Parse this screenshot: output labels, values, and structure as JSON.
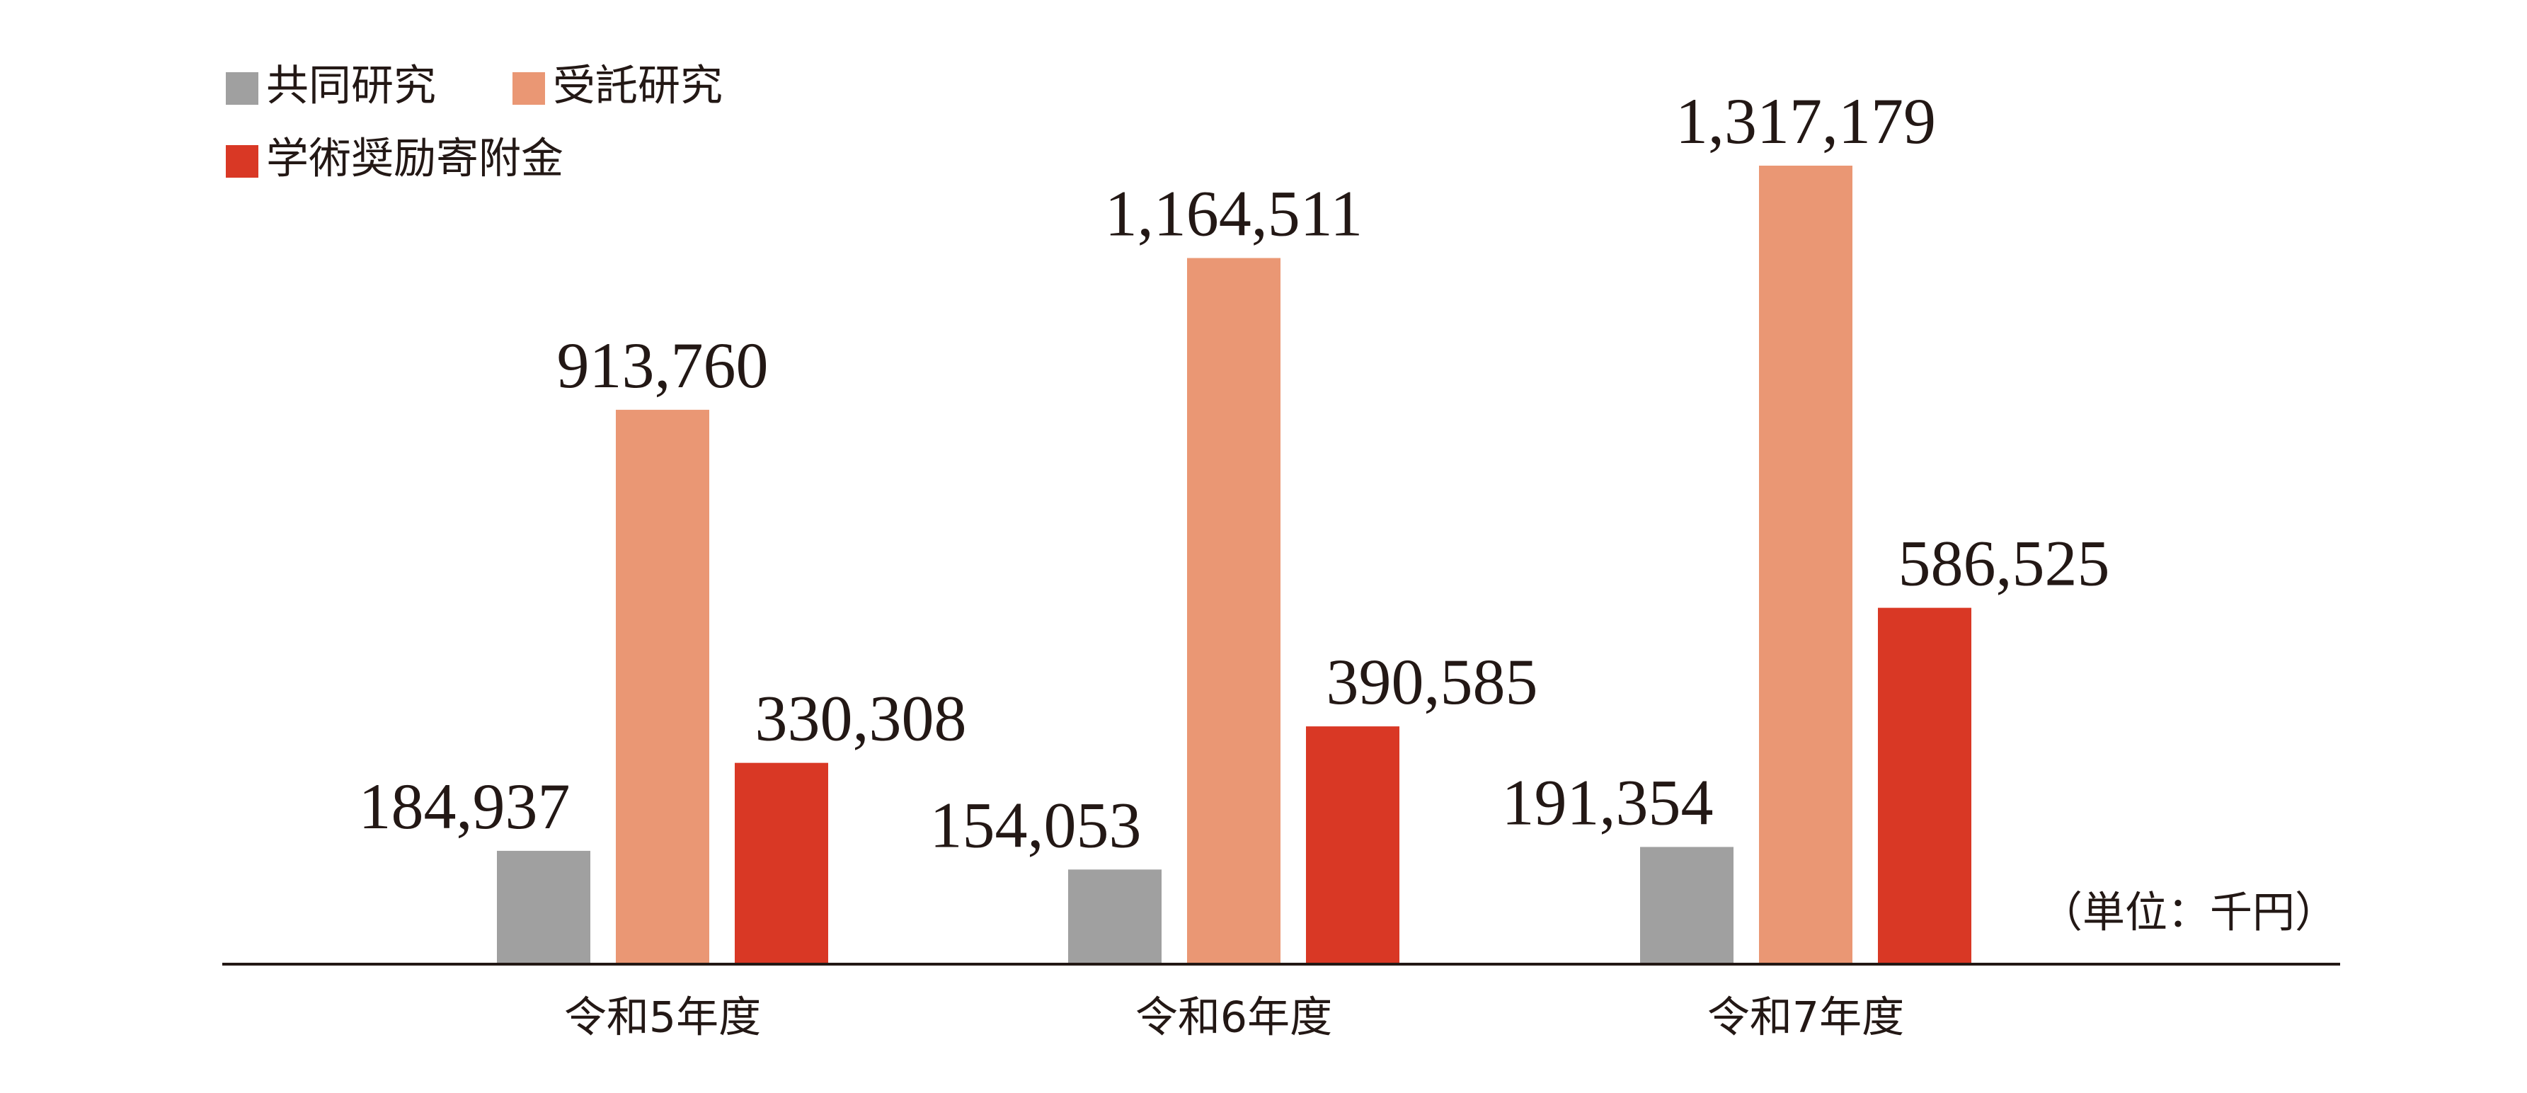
{
  "chart_data": {
    "type": "bar",
    "categories": [
      "令和5年度",
      "令和6年度",
      "令和7年度"
    ],
    "series": [
      {
        "name": "共同研究",
        "color": "#a0a0a0",
        "values": [
          184937,
          154053,
          191354
        ],
        "value_labels": [
          "184,937",
          "154,053",
          "191,354"
        ]
      },
      {
        "name": "受託研究",
        "color": "#ea9774",
        "values": [
          913760,
          1164511,
          1317179
        ],
        "value_labels": [
          "913,760",
          "1,164,511",
          "1,317,179"
        ]
      },
      {
        "name": "学術奨励寄附金",
        "color": "#d93825",
        "values": [
          330308,
          390585,
          586525
        ],
        "value_labels": [
          "330,308",
          "390,585",
          "586,525"
        ]
      }
    ],
    "unit_note": "（単位：千円）"
  }
}
